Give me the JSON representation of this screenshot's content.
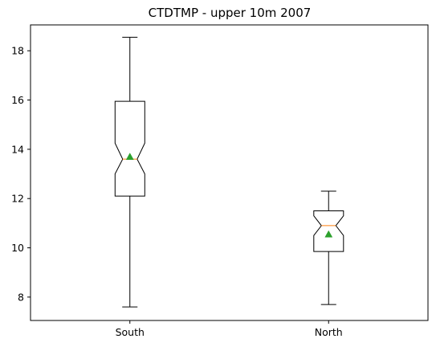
{
  "chart_data": {
    "type": "boxplot",
    "title": "CTDTMP - upper 10m 2007",
    "xlabel": "",
    "ylabel": "",
    "categories": [
      "South",
      "North"
    ],
    "ylim": [
      7.05,
      19.05
    ],
    "yticks": [
      8,
      10,
      12,
      14,
      16,
      18
    ],
    "ytick_labels": [
      "8",
      "10",
      "12",
      "14",
      "16",
      "18"
    ],
    "notched": true,
    "show_means": true,
    "grid": false,
    "boxes": [
      {
        "label": "South",
        "whisker_low": 7.6,
        "q1": 12.1,
        "median": 13.6,
        "q3": 15.95,
        "whisker_high": 18.55,
        "notch_low": 13.0,
        "notch_high": 14.25,
        "mean": 13.7
      },
      {
        "label": "North",
        "whisker_low": 7.7,
        "q1": 9.85,
        "median": 10.9,
        "q3": 11.5,
        "whisker_high": 12.3,
        "notch_low": 10.5,
        "notch_high": 11.3,
        "mean": 10.55
      }
    ],
    "colors": {
      "box": "#000000",
      "median": "#ff7f0e",
      "mean": "#2ca02c"
    }
  }
}
